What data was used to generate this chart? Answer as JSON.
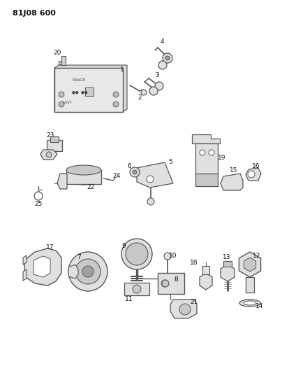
{
  "title": "81J08 600",
  "bg_color": "#ffffff",
  "lc": "#555555",
  "tc": "#111111",
  "figsize": [
    4.04,
    5.33
  ],
  "dpi": 100,
  "gray1": "#c8c8c8",
  "gray2": "#e0e0e0",
  "gray3": "#a0a0a0"
}
